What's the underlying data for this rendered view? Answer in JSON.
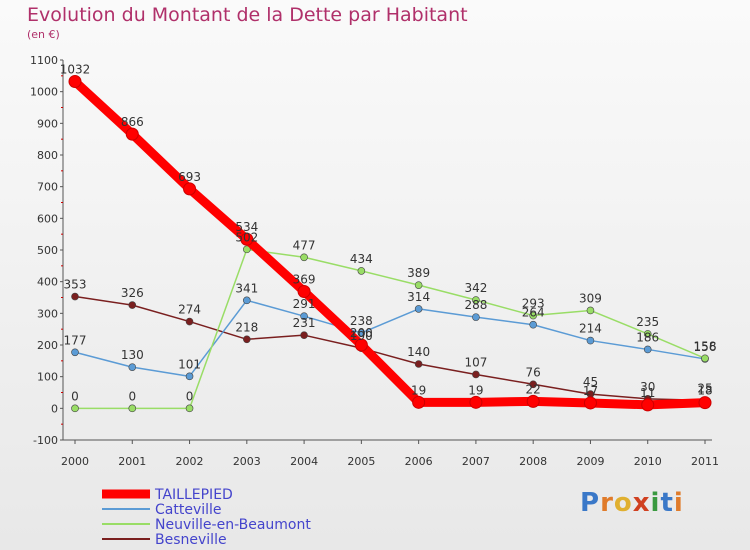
{
  "title": "Evolution du Montant de la Dette par Habitant",
  "subtitle": "(en €)",
  "brand": {
    "letters": [
      "P",
      "r",
      "o",
      "x",
      "i",
      "t",
      "i"
    ],
    "colors": [
      "#3a78c8",
      "#e07b2a",
      "#e0b030",
      "#d04020",
      "#3a9a40",
      "#3a78c8",
      "#e07b2a"
    ]
  },
  "chart_data": {
    "type": "line",
    "x": [
      "2000",
      "2001",
      "2002",
      "2003",
      "2004",
      "2005",
      "2006",
      "2007",
      "2008",
      "2009",
      "2010",
      "2011"
    ],
    "ylim": [
      -100,
      1100
    ],
    "yticks": [
      -100,
      0,
      100,
      200,
      300,
      400,
      500,
      600,
      700,
      800,
      900,
      1000,
      1100
    ],
    "grid": false,
    "legend_position": "bottom-left",
    "series": [
      {
        "name": "TAILLEPIED",
        "color": "#ff0000",
        "values": [
          1032,
          866,
          693,
          534,
          369,
          200,
          19,
          19,
          22,
          17,
          11,
          18
        ],
        "labels": [
          "1032",
          "866",
          "693",
          "534",
          "369",
          "200",
          "19",
          "19",
          "22",
          "17",
          "11",
          "18"
        ]
      },
      {
        "name": "Catteville",
        "color": "#5b9bd5",
        "values": [
          177,
          130,
          101,
          341,
          291,
          238,
          314,
          288,
          264,
          214,
          186,
          156
        ],
        "labels": [
          "177",
          "130",
          "101",
          "341",
          "291",
          "238",
          "314",
          "288",
          "264",
          "214",
          "186",
          "156"
        ]
      },
      {
        "name": "Neuville-en-Beaumont",
        "color": "#99dd66",
        "values": [
          0,
          0,
          0,
          502,
          477,
          434,
          389,
          342,
          293,
          309,
          235,
          158
        ],
        "labels": [
          "0",
          "0",
          "0",
          "502",
          "477",
          "434",
          "389",
          "342",
          "293",
          "309",
          "235",
          "158"
        ]
      },
      {
        "name": "Besneville",
        "color": "#7a1f1f",
        "values": [
          353,
          326,
          274,
          218,
          231,
          190,
          140,
          107,
          76,
          45,
          30,
          25
        ],
        "labels": [
          "353",
          "326",
          "274",
          "218",
          "231",
          "190",
          "140",
          "107",
          "76",
          "45",
          "30",
          "25"
        ]
      }
    ]
  }
}
